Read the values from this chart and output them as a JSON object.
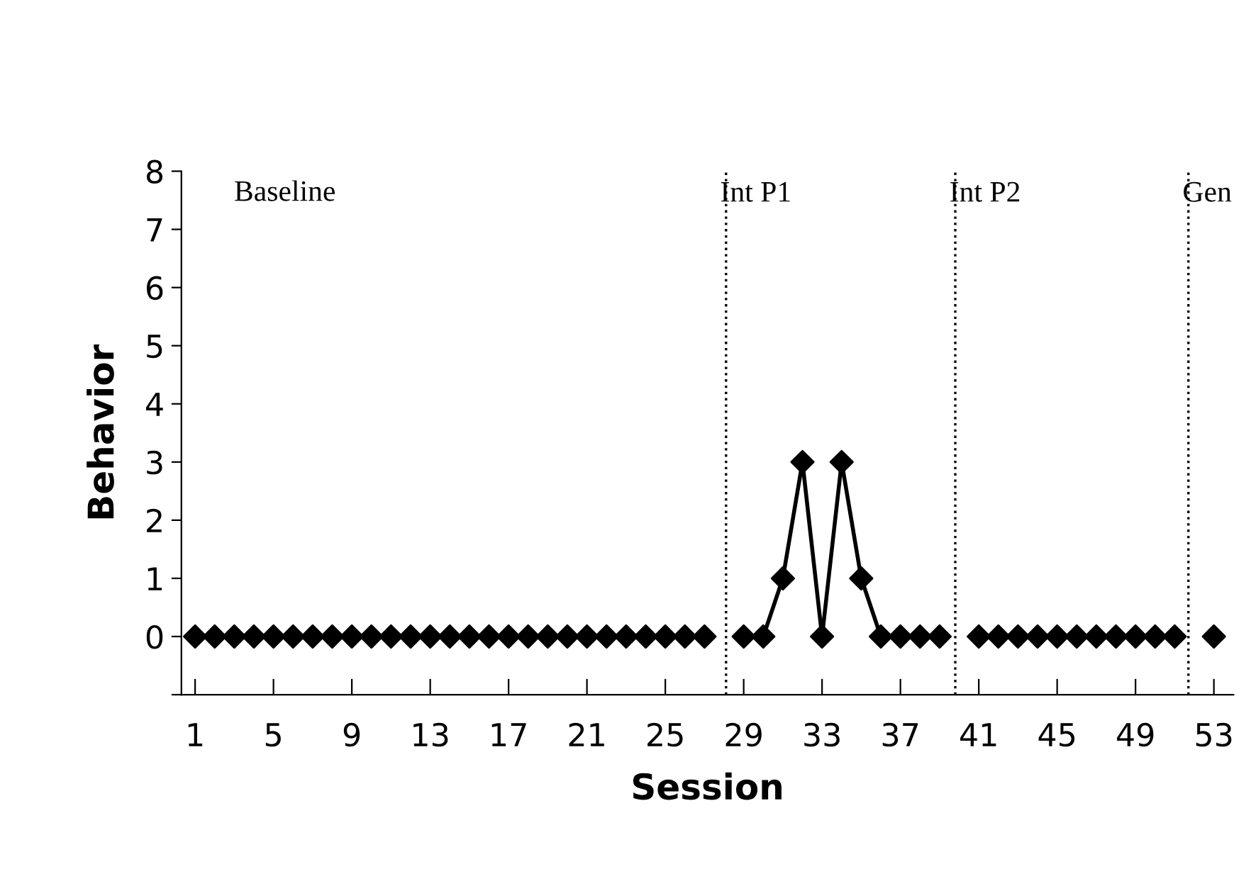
{
  "chart_data": {
    "type": "line",
    "xlabel": "Session",
    "ylabel": "Behavior",
    "x": [
      1,
      2,
      3,
      4,
      5,
      6,
      7,
      8,
      9,
      10,
      11,
      12,
      13,
      14,
      15,
      16,
      17,
      18,
      19,
      20,
      21,
      22,
      23,
      24,
      25,
      26,
      27,
      28,
      29,
      30,
      31,
      32,
      33,
      34,
      35,
      36,
      37,
      38,
      39,
      40,
      41,
      42,
      43,
      44,
      45,
      46,
      47,
      48,
      49,
      50,
      51,
      52,
      53
    ],
    "series": [
      {
        "color": "#000000",
        "values": [
          0,
          0,
          0,
          0,
          0,
          0,
          0,
          0,
          0,
          0,
          0,
          0,
          0,
          0,
          0,
          0,
          0,
          0,
          0,
          0,
          0,
          0,
          0,
          0,
          0,
          0,
          0,
          null,
          0,
          0,
          1,
          3,
          0,
          3,
          1,
          0,
          0,
          0,
          0,
          null,
          0,
          0,
          0,
          0,
          0,
          0,
          0,
          0,
          0,
          0,
          0,
          null,
          0
        ]
      }
    ],
    "marker": "diamond",
    "line_style": "solid",
    "grid": false,
    "legend": false,
    "xlim": [
      0.3,
      54
    ],
    "xticks": [
      1,
      5,
      9,
      13,
      17,
      21,
      25,
      29,
      33,
      37,
      41,
      45,
      49,
      53
    ],
    "ylim": [
      -1,
      8
    ],
    "yticks": [
      {
        "value": -1,
        "label": null
      },
      0,
      1,
      2,
      3,
      4,
      5,
      6,
      7,
      8
    ],
    "ref_lines": [
      {
        "axis": "x",
        "value": 28.1,
        "label": "Int P1",
        "color": "#000000",
        "line_style": "dotted"
      },
      {
        "axis": "x",
        "value": 39.8,
        "label": "Int P2",
        "color": "#000000",
        "line_style": "dotted"
      },
      {
        "axis": "x",
        "value": 51.7,
        "label": "Gen",
        "color": "#000000",
        "line_style": "dotted"
      }
    ],
    "annotations": [
      "Baseline"
    ]
  }
}
